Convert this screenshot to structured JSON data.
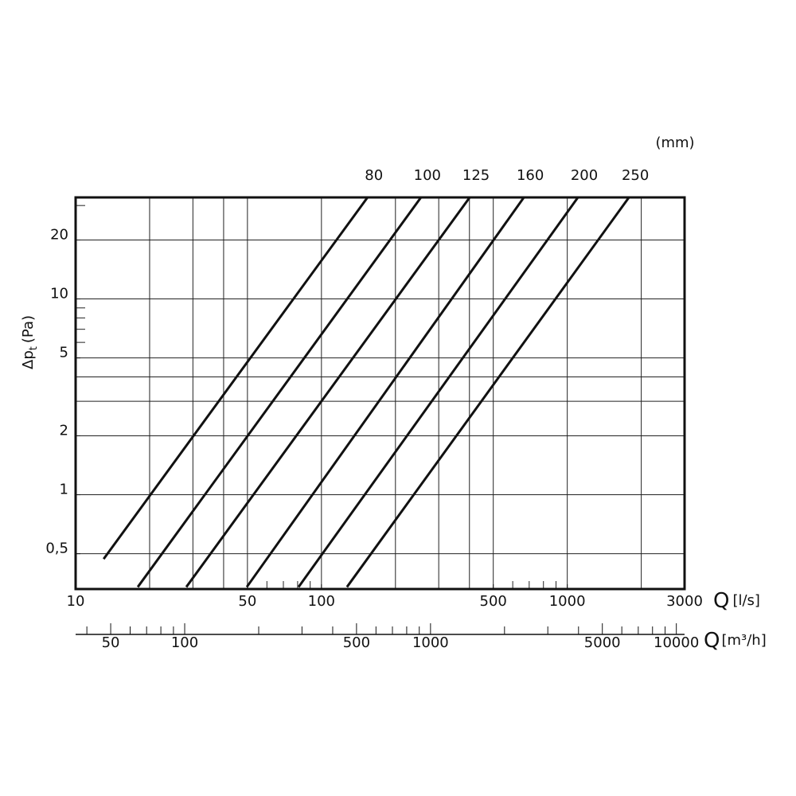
{
  "chart_data": {
    "type": "line",
    "log_x": true,
    "log_y": true,
    "y_label": {
      "main": "Δp",
      "sub": "t",
      "unit": "(Pa)"
    },
    "x_label": {
      "main": "Q",
      "unit": "[l/s]"
    },
    "x2_label": {
      "main": "Q",
      "unit": "[m³/h]"
    },
    "legend_title": "(mm)",
    "xlim": [
      10,
      3000
    ],
    "xticks": [
      10,
      50,
      100,
      500,
      1000,
      3000
    ],
    "xgrid": [
      20,
      30,
      40,
      50,
      100,
      200,
      300,
      400,
      500,
      1000,
      2000
    ],
    "xminor": [
      60,
      70,
      80,
      90,
      600,
      700,
      800,
      900
    ],
    "x2lim": [
      36,
      10800
    ],
    "x2ticks": [
      50,
      100,
      500,
      1000,
      5000,
      10000
    ],
    "x2minor": [
      40,
      60,
      70,
      80,
      90,
      200,
      300,
      400,
      600,
      700,
      800,
      900,
      2000,
      3000,
      4000,
      6000,
      7000,
      8000,
      9000
    ],
    "ylim": [
      0.33,
      33
    ],
    "yticks": [
      {
        "value": 0.5,
        "label": "0,5"
      },
      1,
      2,
      5,
      10,
      20
    ],
    "ygrid": [
      0.5,
      1,
      2,
      3,
      4,
      5,
      10,
      20
    ],
    "yminor": [
      6,
      7,
      8,
      9,
      30
    ],
    "color": "#111111",
    "series": [
      {
        "name": "80",
        "x": [
          13.0,
          154
        ],
        "values": [
          0.47,
          33
        ]
      },
      {
        "name": "100",
        "x": [
          17.9,
          254
        ],
        "values": [
          0.338,
          33
        ]
      },
      {
        "name": "125",
        "x": [
          28.2,
          401
        ],
        "values": [
          0.338,
          33
        ]
      },
      {
        "name": "160",
        "x": [
          49.7,
          666
        ],
        "values": [
          0.338,
          33
        ]
      },
      {
        "name": "200",
        "x": [
          80.7,
          1105
        ],
        "values": [
          0.338,
          33
        ]
      },
      {
        "name": "250",
        "x": [
          127,
          1782
        ],
        "values": [
          0.338,
          33
        ]
      }
    ]
  }
}
